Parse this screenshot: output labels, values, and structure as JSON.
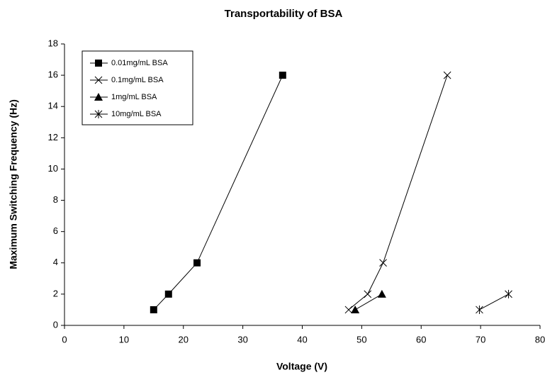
{
  "chart_data": {
    "type": "line",
    "title": "Transportability of BSA",
    "x_label": "Voltage (V)",
    "y_label": "Maximum Switching Frequency (Hz)",
    "xlim": [
      0,
      80
    ],
    "xticks": [
      0,
      10,
      20,
      30,
      40,
      50,
      60,
      70,
      80
    ],
    "ylim": [
      0,
      18
    ],
    "yticks": [
      0,
      2,
      4,
      6,
      8,
      10,
      12,
      14,
      16,
      18
    ],
    "grid": false,
    "legend": "upper left",
    "series": [
      {
        "name": "0.01mg/mL BSA",
        "color": "#000000",
        "marker": "square",
        "x": [
          15,
          17.5,
          22.3,
          36.7
        ],
        "values": [
          1,
          2,
          4,
          16
        ]
      },
      {
        "name": "0.1mg/mL BSA",
        "color": "#000000",
        "marker": "x",
        "x": [
          47.8,
          51,
          53.6,
          64.4
        ],
        "values": [
          1,
          2,
          4,
          16
        ]
      },
      {
        "name": "1mg/mL BSA",
        "color": "#000000",
        "marker": "triangle",
        "x": [
          48.9,
          53.4
        ],
        "values": [
          1,
          2
        ]
      },
      {
        "name": "10mg/mL BSA",
        "color": "#000000",
        "marker": "star",
        "x": [
          69.8,
          74.7
        ],
        "values": [
          1,
          2
        ]
      }
    ]
  }
}
